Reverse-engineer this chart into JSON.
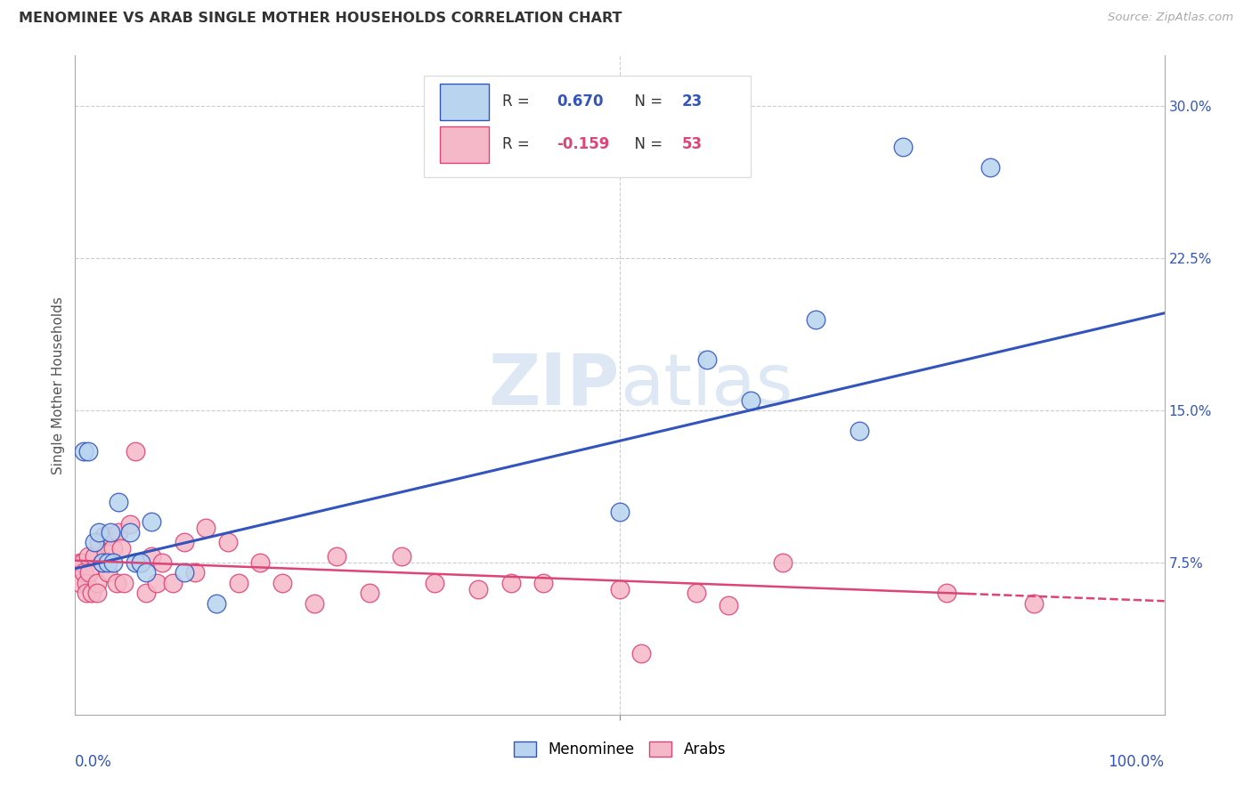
{
  "title": "MENOMINEE VS ARAB SINGLE MOTHER HOUSEHOLDS CORRELATION CHART",
  "source": "Source: ZipAtlas.com",
  "ylabel": "Single Mother Households",
  "watermark": "ZIPatlas",
  "menominee_R": 0.67,
  "menominee_N": 23,
  "arab_R": -0.159,
  "arab_N": 53,
  "xlim": [
    0.0,
    1.0
  ],
  "ylim": [
    0.0,
    0.325
  ],
  "yticks": [
    0.075,
    0.15,
    0.225,
    0.3
  ],
  "ytick_labels": [
    "7.5%",
    "15.0%",
    "22.5%",
    "30.0%"
  ],
  "menominee_color": "#b8d4ee",
  "arab_color": "#f5b8c8",
  "menominee_line_color": "#3355bb",
  "arab_line_color": "#dd4477",
  "background_color": "#ffffff",
  "grid_color": "#cccccc",
  "menominee_x": [
    0.008,
    0.012,
    0.018,
    0.022,
    0.025,
    0.03,
    0.032,
    0.035,
    0.04,
    0.05,
    0.055,
    0.06,
    0.065,
    0.07,
    0.1,
    0.13,
    0.5,
    0.58,
    0.62,
    0.68,
    0.72,
    0.76,
    0.84
  ],
  "menominee_y": [
    0.13,
    0.13,
    0.085,
    0.09,
    0.075,
    0.075,
    0.09,
    0.075,
    0.105,
    0.09,
    0.075,
    0.075,
    0.07,
    0.095,
    0.07,
    0.055,
    0.1,
    0.175,
    0.155,
    0.195,
    0.14,
    0.28,
    0.27
  ],
  "arab_x": [
    0.005,
    0.005,
    0.007,
    0.008,
    0.01,
    0.01,
    0.012,
    0.013,
    0.015,
    0.018,
    0.02,
    0.02,
    0.022,
    0.025,
    0.027,
    0.028,
    0.03,
    0.032,
    0.035,
    0.038,
    0.04,
    0.042,
    0.045,
    0.05,
    0.055,
    0.06,
    0.065,
    0.07,
    0.075,
    0.08,
    0.09,
    0.1,
    0.11,
    0.12,
    0.14,
    0.15,
    0.17,
    0.19,
    0.22,
    0.24,
    0.27,
    0.3,
    0.33,
    0.37,
    0.4,
    0.43,
    0.5,
    0.52,
    0.57,
    0.6,
    0.65,
    0.8,
    0.88
  ],
  "arab_y": [
    0.075,
    0.065,
    0.075,
    0.07,
    0.065,
    0.06,
    0.078,
    0.07,
    0.06,
    0.078,
    0.065,
    0.06,
    0.085,
    0.075,
    0.088,
    0.08,
    0.07,
    0.088,
    0.082,
    0.065,
    0.09,
    0.082,
    0.065,
    0.094,
    0.13,
    0.075,
    0.06,
    0.078,
    0.065,
    0.075,
    0.065,
    0.085,
    0.07,
    0.092,
    0.085,
    0.065,
    0.075,
    0.065,
    0.055,
    0.078,
    0.06,
    0.078,
    0.065,
    0.062,
    0.065,
    0.065,
    0.062,
    0.03,
    0.06,
    0.054,
    0.075,
    0.06,
    0.055
  ],
  "men_line_x0": 0.0,
  "men_line_y0": 0.072,
  "men_line_x1": 1.0,
  "men_line_y1": 0.198,
  "arab_line_x0": 0.0,
  "arab_line_y0": 0.076,
  "arab_line_x1": 1.0,
  "arab_line_y1": 0.056
}
